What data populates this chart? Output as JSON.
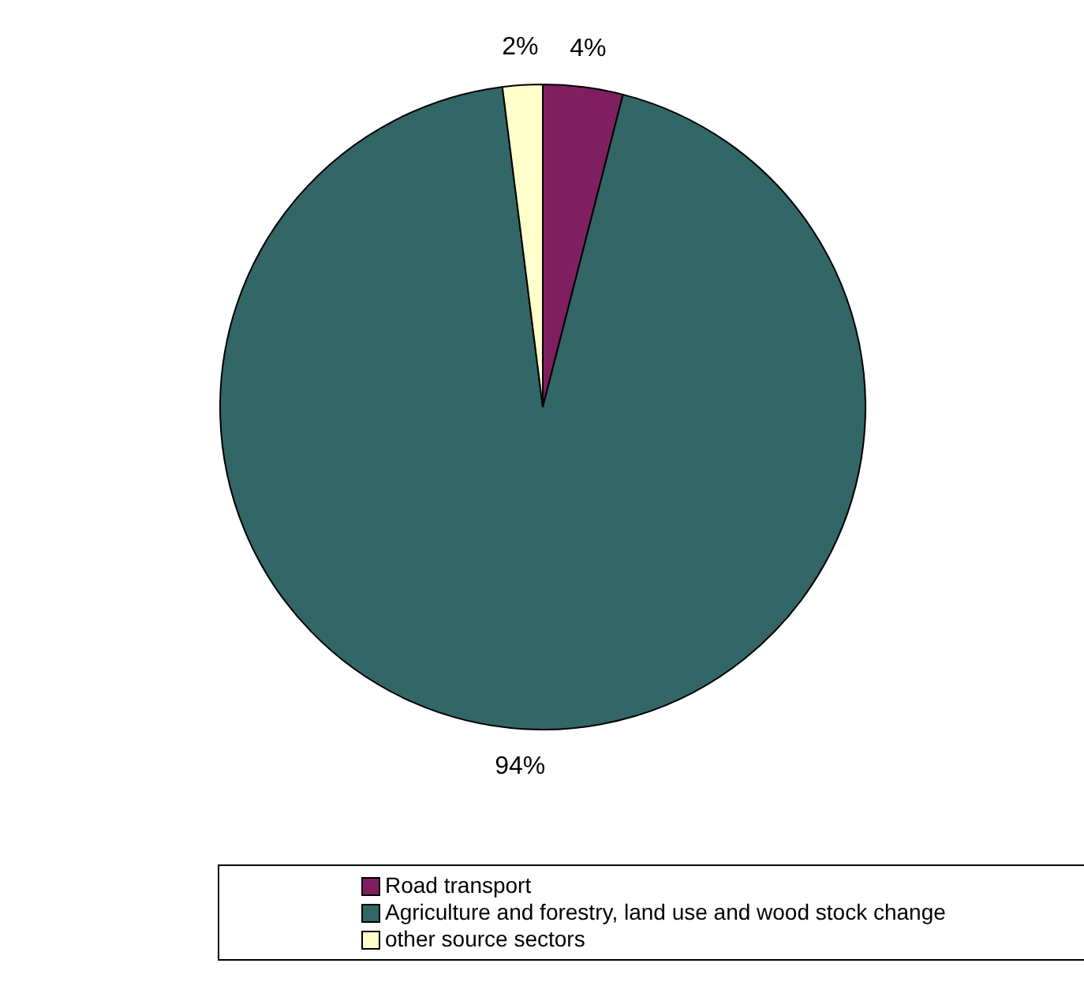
{
  "chart_data": {
    "type": "pie",
    "categories": [
      "Road transport",
      "Agriculture and forestry, land use and wood stock change",
      "other source sectors"
    ],
    "values": [
      4,
      94,
      2
    ],
    "value_labels": [
      "4%",
      "94%",
      "2%"
    ],
    "colors": [
      "#7f1f5f",
      "#336666",
      "#ffffcc"
    ],
    "legend": "bottom"
  }
}
